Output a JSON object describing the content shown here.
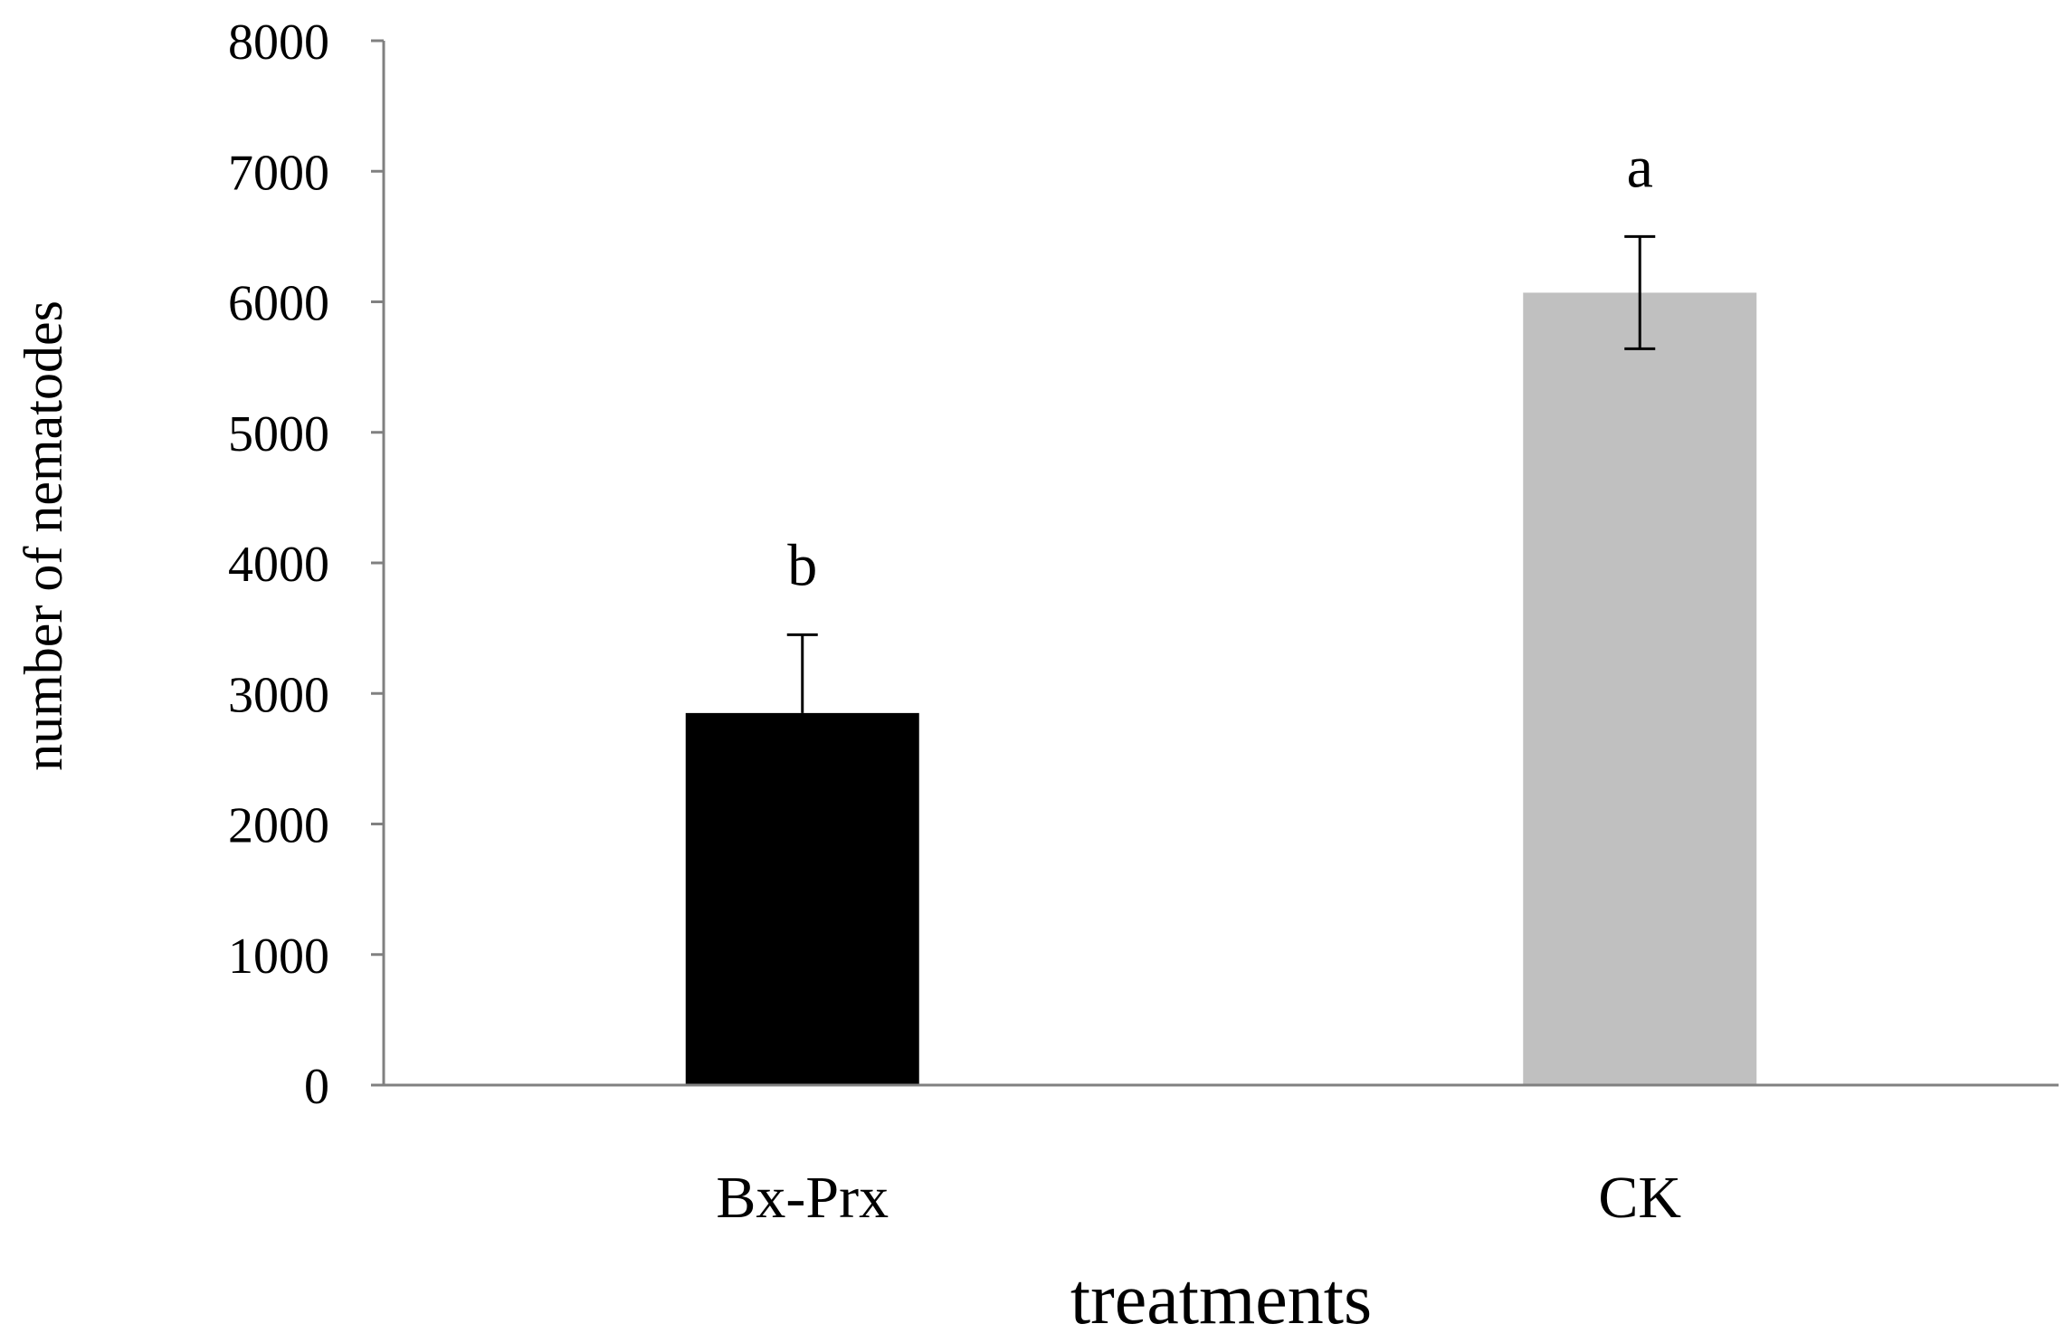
{
  "chart_data": {
    "type": "bar",
    "categories": [
      "Bx-Prx",
      "CK"
    ],
    "values": [
      2850,
      6070
    ],
    "errors": [
      600,
      430
    ],
    "error_style": [
      "upper",
      "both"
    ],
    "significance_labels": [
      "b",
      "a"
    ],
    "colors": [
      "#000000",
      "#c0c0c0"
    ],
    "xlabel": "treatments",
    "ylabel": "number of nematodes",
    "ylim": [
      0,
      8000
    ],
    "yticks": [
      0,
      1000,
      2000,
      3000,
      4000,
      5000,
      6000,
      7000,
      8000
    ],
    "ytick_labels": [
      "0",
      "1000",
      "2000",
      "3000",
      "4000",
      "5000",
      "6000",
      "7000",
      "8000"
    ],
    "grid": false,
    "legend": "none"
  }
}
